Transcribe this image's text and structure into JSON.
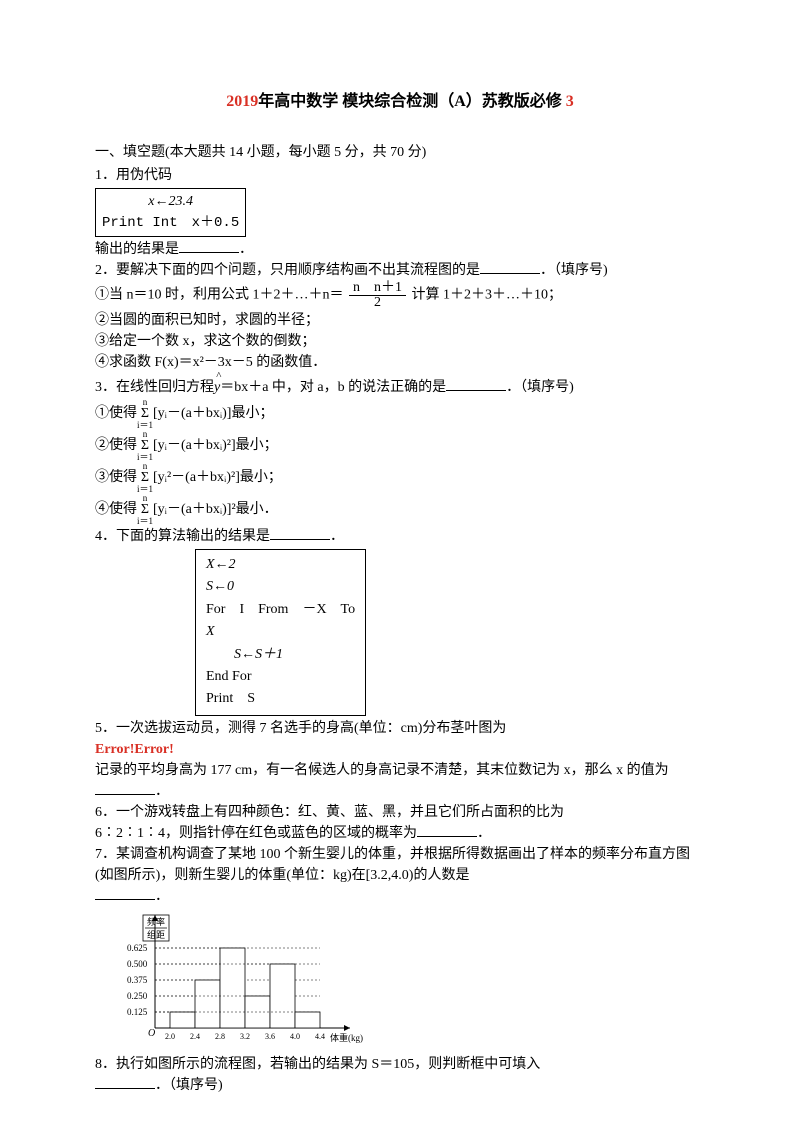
{
  "title": {
    "year": "2019",
    "part1": "年高中数学 模块综合检测（A）苏教版必修",
    "part2": "3"
  },
  "intro": "一、填空题(本大题共 14 小题，每小题 5 分，共 70 分)",
  "q1": {
    "prefix": "1．用伪代码",
    "code_line1": "x←23.4",
    "code_line2": "Print Int　x＋0.5",
    "tail": "输出的结果是",
    "period": "．"
  },
  "q2": {
    "line1a": "2．要解决下面的四个问题，只用顺序结构画不出其流程图的是",
    "line1b": "．（填序号)",
    "opt1a": "①当 n＝10 时，利用公式 1＋2＋…＋n＝",
    "frac_num": "n　n＋1",
    "frac_den": "2",
    "opt1b": "计算 1＋2＋3＋…＋10；",
    "opt2": "②当圆的面积已知时，求圆的半径；",
    "opt3": "③给定一个数 x，求这个数的倒数；",
    "opt4": "④求函数 F(x)＝x²－3x－5 的函数值．"
  },
  "q3": {
    "line1a": "3．在线性回归方程",
    "yhat": "y",
    "line1b": "＝bx＋a 中，对 a，b 的说法正确的是",
    "line1c": "．（填序号)",
    "opt1": "①使得",
    "sum_top": "n",
    "sum_bot": "i＝1",
    "f1": "[yᵢ－(a＋bxᵢ)]最小；",
    "opt2": "②使得",
    "f2": "[yᵢ－(a＋bxᵢ)²]最小；",
    "opt3": "③使得",
    "f3": "[yᵢ²－(a＋bxᵢ)²]最小；",
    "opt4": "④使得",
    "f4": "[yᵢ－(a＋bxᵢ)]²最小．"
  },
  "q4": {
    "line1": "4．下面的算法输出的结果是",
    "period": "．",
    "code": [
      "X←2",
      "S←0",
      "For　I　From　－X　To",
      "X",
      "　　S←S＋1",
      "End For",
      "Print　S"
    ]
  },
  "q5": {
    "line1": "5．一次选拔运动员，测得 7 名选手的身高(单位：cm)分布茎叶图为",
    "err": "Error!Error!",
    "line2": "记录的平均身高为 177 cm，有一名候选人的身高记录不清楚，其末位数记为 x，那么 x 的值为",
    "period": "．"
  },
  "q6": {
    "line1": "6．一个游戏转盘上有四种颜色：红、黄、蓝、黑，并且它们所占面积的比为",
    "line2a": "6∶2∶1∶4，则指针停在红色或蓝色的区域的概率为",
    "period": "．"
  },
  "q7": {
    "line1": "7．某调查机构调查了某地 100 个新生婴儿的体重，并根据所得数据画出了样本的频率分布直方图(如图所示)，则新生婴儿的体重(单位：kg)在[3.2,4.0)的人数是",
    "period": "．"
  },
  "histogram": {
    "ylabel_top": "频率",
    "ylabel_bot": "组距",
    "yticks": [
      "0.625",
      "0.500",
      "0.375",
      "0.250",
      "0.125"
    ],
    "xticks": [
      "2.0",
      "2.4",
      "2.8",
      "3.2",
      "3.6",
      "4.0",
      "4.4"
    ],
    "xlabel": "体重(kg)",
    "bar_heights": [
      0.125,
      0.375,
      0.625,
      0.25,
      0.5,
      0.125
    ],
    "colors": {
      "axis": "#000000",
      "dashed": "#000000",
      "fill": "#ffffff"
    }
  },
  "q8": {
    "line1": "8．执行如图所示的流程图，若输出的结果为 S＝105，则判断框中可填入",
    "line2": "．（填序号)"
  }
}
